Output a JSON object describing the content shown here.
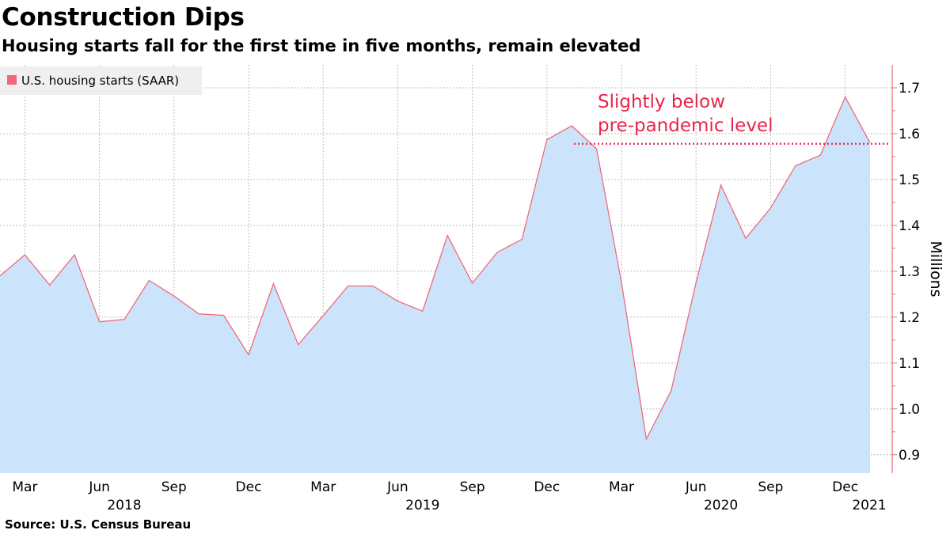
{
  "header": {
    "title": "Construction Dips",
    "subtitle": "Housing starts fall for the first time in five months, remain elevated"
  },
  "footer": {
    "source": "Source: U.S. Census Bureau"
  },
  "colors": {
    "line": "#f0697a",
    "area": "#cce4fb",
    "annotation": "#e8264a",
    "axis": "#f0697a",
    "grid": "#bdbdbd",
    "legend_bg": "#efefef"
  },
  "chart_data": {
    "type": "area",
    "title": "Construction Dips",
    "subtitle": "Housing starts fall for the first time in five months, remain elevated",
    "ylabel": "Millions",
    "xlabel": "",
    "ylim": [
      0.86,
      1.75
    ],
    "yticks": [
      0.9,
      1.0,
      1.1,
      1.2,
      1.3,
      1.4,
      1.5,
      1.6,
      1.7
    ],
    "ytick_labels": [
      "0.9",
      "1.0",
      "1.1",
      "1.2",
      "1.3",
      "1.4",
      "1.5",
      "1.6",
      "1.7"
    ],
    "grid": true,
    "legend_position": "top-left",
    "x_month_ticks": [
      {
        "label": "Mar",
        "index": 1
      },
      {
        "label": "Jun",
        "index": 4
      },
      {
        "label": "Sep",
        "index": 7
      },
      {
        "label": "Dec",
        "index": 10
      },
      {
        "label": "Mar",
        "index": 13
      },
      {
        "label": "Jun",
        "index": 16
      },
      {
        "label": "Sep",
        "index": 19
      },
      {
        "label": "Dec",
        "index": 22
      },
      {
        "label": "Mar",
        "index": 25
      },
      {
        "label": "Jun",
        "index": 28
      },
      {
        "label": "Sep",
        "index": 31
      },
      {
        "label": "Dec",
        "index": 34
      }
    ],
    "x_year_ticks": [
      {
        "label": "2018",
        "index": 5
      },
      {
        "label": "2019",
        "index": 17
      },
      {
        "label": "2020",
        "index": 29
      },
      {
        "label": "2021",
        "index": 35.5
      }
    ],
    "x": [
      "2018-02",
      "2018-03",
      "2018-04",
      "2018-05",
      "2018-06",
      "2018-07",
      "2018-08",
      "2018-09",
      "2018-10",
      "2018-11",
      "2018-12",
      "2019-01",
      "2019-02",
      "2019-03",
      "2019-04",
      "2019-05",
      "2019-06",
      "2019-07",
      "2019-08",
      "2019-09",
      "2019-10",
      "2019-11",
      "2019-12",
      "2020-01",
      "2020-02",
      "2020-03",
      "2020-04",
      "2020-05",
      "2020-06",
      "2020-07",
      "2020-08",
      "2020-09",
      "2020-10",
      "2020-11",
      "2020-12",
      "2021-01"
    ],
    "series": [
      {
        "name": "U.S. housing starts (SAAR)",
        "values": [
          1.29,
          1.336,
          1.27,
          1.336,
          1.19,
          1.195,
          1.28,
          1.246,
          1.207,
          1.204,
          1.118,
          1.273,
          1.14,
          1.203,
          1.268,
          1.268,
          1.235,
          1.213,
          1.378,
          1.274,
          1.341,
          1.37,
          1.587,
          1.617,
          1.567,
          1.276,
          0.934,
          1.04,
          1.275,
          1.488,
          1.372,
          1.438,
          1.53,
          1.553,
          1.68,
          1.58
        ]
      }
    ],
    "annotations": [
      {
        "text_line1": "Slightly below",
        "text_line2": "pre-pandemic level",
        "level": 1.578,
        "from_index": 23,
        "to_index": 36
      }
    ]
  }
}
